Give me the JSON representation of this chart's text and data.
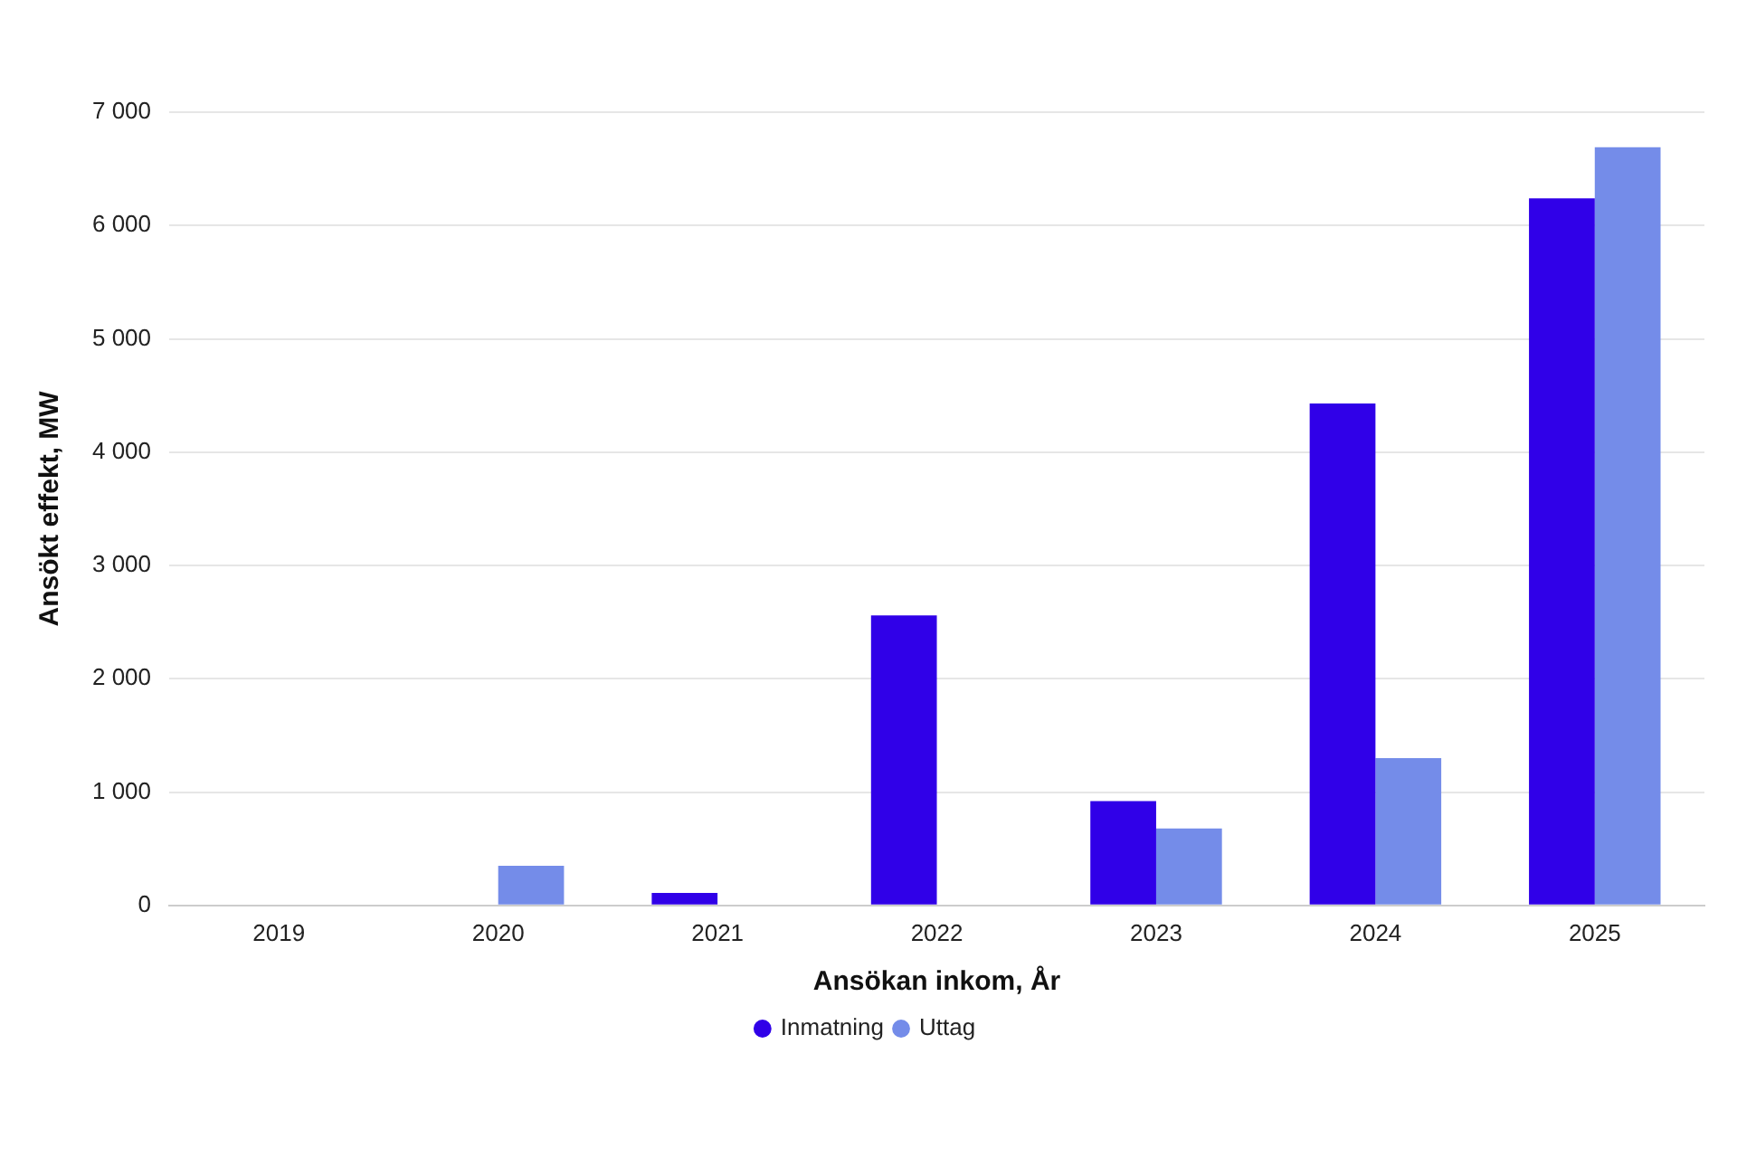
{
  "chart_data": {
    "type": "bar",
    "xlabel": "Ansökan inkom, År",
    "ylabel": "Ansökt effekt, MW",
    "categories": [
      "2019",
      "2020",
      "2021",
      "2022",
      "2023",
      "2024",
      "2025"
    ],
    "series": [
      {
        "name": "Inmatning",
        "color": "#3000e8",
        "values": [
          0,
          0,
          110,
          2560,
          920,
          4430,
          6240
        ]
      },
      {
        "name": "Uttag",
        "color": "#748ce9",
        "values": [
          0,
          350,
          0,
          0,
          680,
          1300,
          6690
        ]
      }
    ],
    "ylim": [
      0,
      7000
    ],
    "yticks": [
      {
        "value": 0,
        "label": "0"
      },
      {
        "value": 1000,
        "label": "1 000"
      },
      {
        "value": 2000,
        "label": "2 000"
      },
      {
        "value": 3000,
        "label": "3 000"
      },
      {
        "value": 4000,
        "label": "4 000"
      },
      {
        "value": 5000,
        "label": "5 000"
      },
      {
        "value": 6000,
        "label": "6 000"
      },
      {
        "value": 7000,
        "label": "7 000"
      }
    ],
    "grid": "y",
    "legend": "bottom"
  }
}
